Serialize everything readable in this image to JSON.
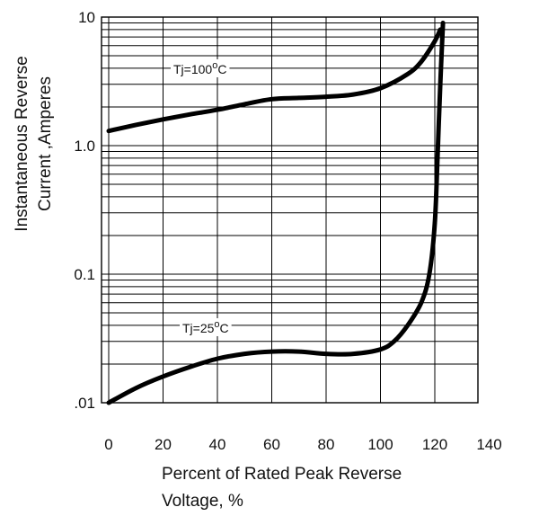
{
  "chart_data": {
    "type": "line",
    "title": "",
    "xlabel_lines": [
      "Percent of Rated Peak Reverse",
      "Voltage, %"
    ],
    "ylabel_lines": [
      "Instantaneous Reverse",
      "Current ,Amperes"
    ],
    "x_scale": "linear",
    "y_scale": "log",
    "xlim": [
      0,
      140
    ],
    "ylim": [
      0.01,
      10
    ],
    "x_ticks": [
      0,
      20,
      40,
      60,
      80,
      100,
      120,
      140
    ],
    "x_tick_labels": [
      "0",
      "20",
      "40",
      "60",
      "80",
      "100",
      "120",
      "140"
    ],
    "y_ticks": [
      0.01,
      0.1,
      1,
      10
    ],
    "y_tick_labels": [
      ".01",
      "0.1",
      "1.0",
      "10"
    ],
    "grid": true,
    "series": [
      {
        "name": "Tj=100°C",
        "label_main": "Tj=100",
        "label_deg": "o",
        "label_unit": "C",
        "x": [
          0,
          10,
          20,
          30,
          40,
          50,
          60,
          70,
          80,
          90,
          100,
          110,
          115,
          120,
          122
        ],
        "y": [
          1.3,
          1.45,
          1.6,
          1.75,
          1.9,
          2.1,
          2.3,
          2.35,
          2.4,
          2.5,
          2.8,
          3.6,
          4.5,
          6.5,
          8
        ]
      },
      {
        "name": "Tj=25°C",
        "label_main": "Tj=25",
        "label_deg": "o",
        "label_unit": "C",
        "x": [
          0,
          10,
          20,
          30,
          40,
          50,
          60,
          70,
          80,
          90,
          100,
          105,
          110,
          115,
          118,
          120,
          121,
          122,
          123
        ],
        "y": [
          0.01,
          0.013,
          0.016,
          0.019,
          0.022,
          0.024,
          0.025,
          0.025,
          0.024,
          0.024,
          0.026,
          0.03,
          0.04,
          0.06,
          0.1,
          0.25,
          0.8,
          3,
          9
        ]
      }
    ]
  }
}
